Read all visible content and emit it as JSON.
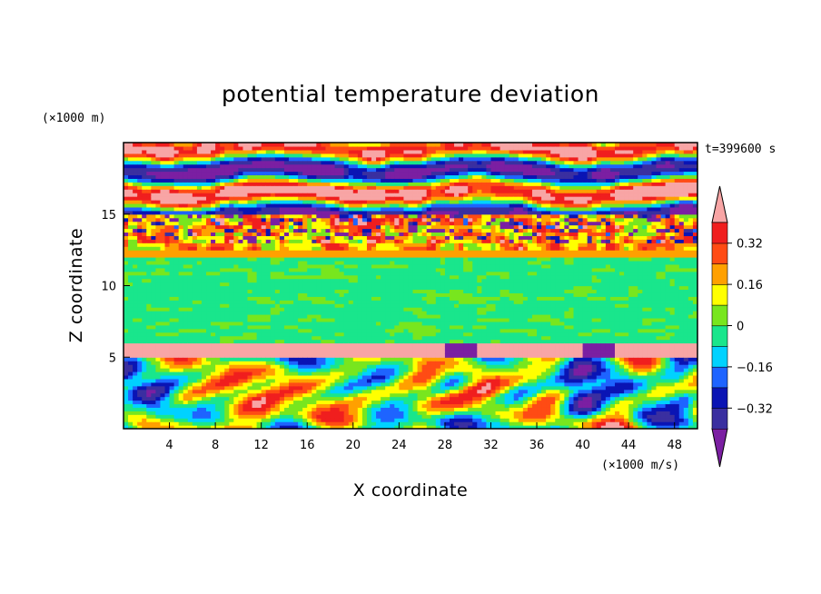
{
  "chart_data": {
    "type": "heatmap",
    "title": "potential temperature deviation",
    "xlabel": "X coordinate",
    "ylabel": "Z coordinate",
    "x_unit": "(×1000 m/s)",
    "y_unit": "(×1000 m)",
    "time_label": "t=399600 s",
    "xlim": [
      0,
      50
    ],
    "ylim": [
      0,
      20
    ],
    "x_ticks": [
      4,
      8,
      12,
      16,
      20,
      24,
      28,
      32,
      36,
      40,
      44,
      48
    ],
    "y_ticks": [
      5,
      10,
      15
    ],
    "legend_placement": "right",
    "colorbar": {
      "levels": [
        -0.4,
        -0.32,
        -0.24,
        -0.16,
        -0.08,
        0,
        0.08,
        0.16,
        0.24,
        0.32,
        0.4
      ],
      "labels": [
        "−0.32",
        "−0.16",
        "0",
        "0.16",
        "0.32"
      ],
      "label_values": [
        -0.32,
        -0.16,
        0,
        0.16,
        0.32
      ],
      "colors": [
        "#7b1fa2",
        "#3a2fa0",
        "#0a14b4",
        "#1e64ff",
        "#00d2ff",
        "#19e68c",
        "#78e61e",
        "#ffff00",
        "#ffa000",
        "#ff4b14",
        "#f01e1e",
        "#f8a5a5"
      ]
    },
    "layers": [
      {
        "z_range": [
          0,
          5
        ],
        "description_value": "mixed -0.40 to 0.40"
      },
      {
        "z_range": [
          5,
          6
        ],
        "value": 0.4
      },
      {
        "z_range": [
          6,
          12
        ],
        "value": 0.0
      },
      {
        "z_range": [
          12,
          15
        ],
        "value": 0.24
      },
      {
        "z_range": [
          15,
          20
        ],
        "description_value": "mixed -0.40 to 0.40"
      }
    ]
  }
}
